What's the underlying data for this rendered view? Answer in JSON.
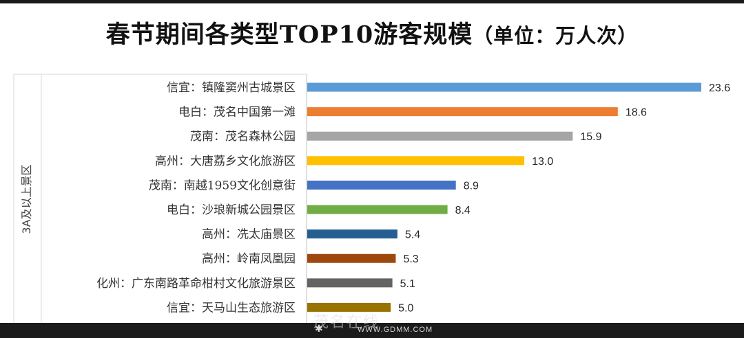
{
  "title": {
    "main": "春节期间各类型TOP10游客规模",
    "unit": "（单位：万人次）"
  },
  "chart_data": {
    "type": "bar",
    "orientation": "horizontal",
    "title": "春节期间各类型TOP10游客规模（单位：万人次）",
    "group_label": "3A及以上景区",
    "categories": [
      "信宜：镇隆窦州古城景区",
      "电白：茂名中国第一滩",
      "茂南：茂名森林公园",
      "高州：大唐荔乡文化旅游区",
      "茂南：南越1959文化创意街",
      "电白：沙琅新城公园景区",
      "高州：冼太庙景区",
      "高州：岭南凤凰园",
      "化州：广东南路革命柑村文化旅游景区",
      "信宜：天马山生态旅游区"
    ],
    "values": [
      23.6,
      18.6,
      15.9,
      13.0,
      8.9,
      8.4,
      5.4,
      5.3,
      5.1,
      5.0
    ],
    "value_labels": [
      "23.6",
      "18.6",
      "15.9",
      "13.0",
      "8.9",
      "8.4",
      "5.4",
      "5.3",
      "5.1",
      "5.0"
    ],
    "colors": [
      "#5b9bd5",
      "#ed7d31",
      "#a5a5a5",
      "#ffc000",
      "#4472c4",
      "#70ad47",
      "#255e91",
      "#9e480e",
      "#636363",
      "#997300"
    ],
    "xlim": [
      0,
      23.6
    ],
    "grid": false,
    "legend": "none"
  },
  "watermark": {
    "logo_text": "茂名在线",
    "url": "WWW.GDMM.COM",
    "star": "✱"
  }
}
